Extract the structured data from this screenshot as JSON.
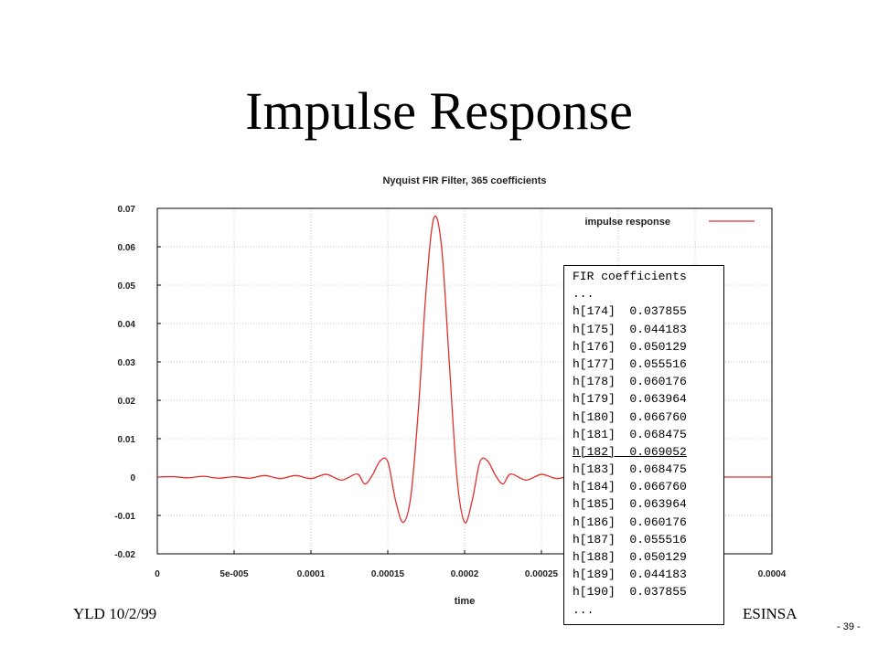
{
  "slide": {
    "title": "Impulse Response",
    "footer_left": "YLD 10/2/99",
    "footer_right": "ESINSA",
    "page_number": "- 39 -"
  },
  "chart_data": {
    "type": "line",
    "title": "Nyquist FIR Filter, 365 coefficients",
    "xlabel": "time",
    "ylabel": "",
    "xlim": [
      0,
      0.0004
    ],
    "ylim": [
      -0.02,
      0.07
    ],
    "x_ticks": [
      0,
      5e-05,
      0.0001,
      0.00015,
      0.0002,
      0.00025,
      0.0003,
      0.00035,
      0.0004
    ],
    "x_tick_labels": [
      "0",
      "5e-005",
      "0.0001",
      "0.00015",
      "0.0002",
      "0.00025",
      "",
      "",
      "0.0004"
    ],
    "y_ticks": [
      -0.02,
      -0.01,
      0,
      0.01,
      0.02,
      0.03,
      0.04,
      0.05,
      0.06,
      0.07
    ],
    "y_tick_labels": [
      "-0.02",
      "-0.01",
      "0",
      "0.01",
      "0.02",
      "0.03",
      "0.04",
      "0.05",
      "0.06",
      "0.07"
    ],
    "grid": true,
    "legend_position": "top-right",
    "series": [
      {
        "name": "impulse response",
        "color": "#e03030",
        "x": [
          0,
          1e-05,
          2e-05,
          3e-05,
          4e-05,
          5e-05,
          6e-05,
          7e-05,
          8e-05,
          9e-05,
          0.0001,
          0.00011,
          0.00012,
          0.00013,
          0.000135,
          0.00014,
          0.000145,
          0.00015,
          0.000155,
          0.00016,
          0.000165,
          0.00017,
          0.000175,
          0.00018,
          0.000185,
          0.00019,
          0.000195,
          0.0002,
          0.000205,
          0.00021,
          0.000215,
          0.00022,
          0.000225,
          0.00023,
          0.00024,
          0.00025,
          0.00026,
          0.00027,
          0.00028,
          0.00029,
          0.0003,
          0.00031,
          0.00032,
          0.00033,
          0.00034,
          0.00035,
          0.00036,
          0.00037,
          0.00038,
          0.00039,
          0.0004
        ],
        "y": [
          0,
          0.0001,
          -0.0002,
          0.0002,
          -0.0003,
          0.0001,
          -0.0003,
          0.0004,
          -0.0004,
          0.0004,
          -0.0004,
          0.0007,
          -0.0008,
          0.0008,
          -0.0018,
          0.0005,
          0.0042,
          0.004,
          -0.006,
          -0.0118,
          -0.005,
          0.018,
          0.049,
          0.0675,
          0.06,
          0.03,
          0.0,
          -0.0118,
          -0.006,
          0.004,
          0.0042,
          0.0005,
          -0.0018,
          0.0008,
          -0.0008,
          0.0007,
          -0.0004,
          0.0004,
          -0.0004,
          0.0004,
          -0.0003,
          0.0001,
          -0.0003,
          0.0002,
          -0.0002,
          0.0001,
          0,
          0,
          0,
          0,
          0
        ]
      }
    ]
  },
  "coefficients_box": {
    "lines": [
      "FIR coefficients",
      "...",
      "h[174]  0.037855",
      "h[175]  0.044183",
      "h[176]  0.050129",
      "h[177]  0.055516",
      "h[178]  0.060176",
      "h[179]  0.063964",
      "h[180]  0.066760",
      "h[181]  0.068475",
      "h[182]  0.069052",
      "h[183]  0.068475",
      "h[184]  0.066760",
      "h[185]  0.063964",
      "h[186]  0.060176",
      "h[187]  0.055516",
      "h[188]  0.050129",
      "h[189]  0.044183",
      "h[190]  0.037855",
      "..."
    ]
  }
}
